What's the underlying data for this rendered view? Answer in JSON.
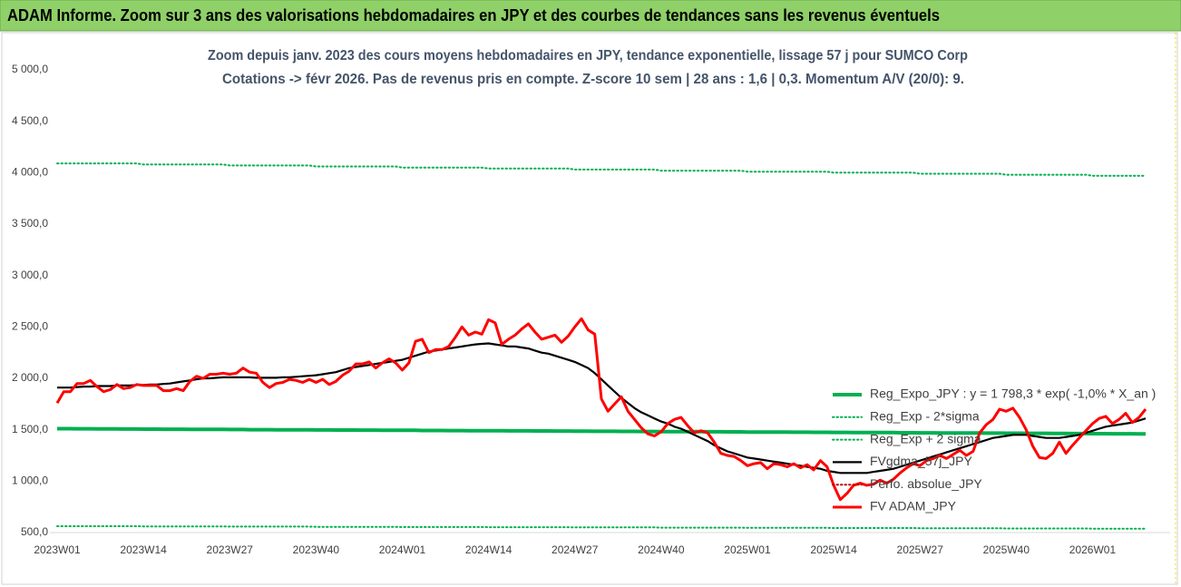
{
  "header": {
    "title": "ADAM Informe. Zoom sur 3 ans des valorisations hebdomadaires en JPY et des courbes de tendances sans les revenus éventuels"
  },
  "chart_data": {
    "type": "line",
    "title": "Zoom depuis janv. 2023 des cours moyens hebdomadaires en JPY, tendance exponentielle, lissage 57 j pour SUMCO Corp",
    "subtitle": "Cotations -> févr 2026.  Pas de revenus pris en compte. Z-score 10 sem | 28 ans : 1,6 | 0,3. Momentum A/V (20/0): 9.",
    "categories": [
      "2023W01",
      null,
      null,
      null,
      null,
      null,
      null,
      null,
      null,
      null,
      null,
      null,
      null,
      "2023W14",
      null,
      null,
      null,
      null,
      null,
      null,
      null,
      null,
      null,
      null,
      null,
      null,
      "2023W27",
      null,
      null,
      null,
      null,
      null,
      null,
      null,
      null,
      null,
      null,
      null,
      null,
      "2023W40",
      null,
      null,
      null,
      null,
      null,
      null,
      null,
      null,
      null,
      null,
      null,
      null,
      "2024W01",
      null,
      null,
      null,
      null,
      null,
      null,
      null,
      null,
      null,
      null,
      null,
      null,
      "2024W14",
      null,
      null,
      null,
      null,
      null,
      null,
      null,
      null,
      null,
      null,
      null,
      null,
      "2024W27",
      null,
      null,
      null,
      null,
      null,
      null,
      null,
      null,
      null,
      null,
      null,
      null,
      "2024W40",
      null,
      null,
      null,
      null,
      null,
      null,
      null,
      null,
      null,
      null,
      null,
      null,
      "2025W01",
      null,
      null,
      null,
      null,
      null,
      null,
      null,
      null,
      null,
      null,
      null,
      null,
      "2025W14",
      null,
      null,
      null,
      null,
      null,
      null,
      null,
      null,
      null,
      null,
      null,
      null,
      "2025W27",
      null,
      null,
      null,
      null,
      null,
      null,
      null,
      null,
      null,
      null,
      null,
      null,
      "2025W40",
      null,
      null,
      null,
      null,
      null,
      null,
      null,
      null,
      null,
      null,
      null,
      null,
      "2026W01",
      null,
      null,
      null,
      null,
      null,
      null,
      null,
      null
    ],
    "ylim": [
      500,
      5000
    ],
    "yticks": [
      {
        "value": 500,
        "label": "500,0"
      },
      {
        "value": 1000,
        "label": "1 000,0"
      },
      {
        "value": 1500,
        "label": "1 500,0"
      },
      {
        "value": 2000,
        "label": "2 000,0"
      },
      {
        "value": 2500,
        "label": "2 500,0"
      },
      {
        "value": 3000,
        "label": "3 000,0"
      },
      {
        "value": 3500,
        "label": "3 500,0"
      },
      {
        "value": 4000,
        "label": "4 000,0"
      },
      {
        "value": 4500,
        "label": "4 500,0"
      },
      {
        "value": 5000,
        "label": "5 000,0"
      }
    ],
    "grid": false,
    "legend": "lower right",
    "series": [
      {
        "name": "Reg_Expo_JPY : y = 1 798,3 * exp( -1,0% *  X_an )",
        "color": "#00b050",
        "style": "solid",
        "values": [
          1510,
          1510,
          1510,
          1509,
          1509,
          1509,
          1508,
          1508,
          1508,
          1508,
          1507,
          1507,
          1507,
          1506,
          1506,
          1506,
          1505,
          1505,
          1505,
          1505,
          1504,
          1504,
          1504,
          1503,
          1503,
          1503,
          1502,
          1502,
          1502,
          1501,
          1501,
          1501,
          1501,
          1500,
          1500,
          1500,
          1499,
          1499,
          1499,
          1498,
          1498,
          1498,
          1497,
          1497,
          1497,
          1497,
          1496,
          1496,
          1496,
          1495,
          1495,
          1495,
          1494,
          1494,
          1494,
          1493,
          1493,
          1493,
          1493,
          1492,
          1492,
          1492,
          1491,
          1491,
          1491,
          1490,
          1490,
          1490,
          1489,
          1489,
          1489,
          1489,
          1488,
          1488,
          1488,
          1487,
          1487,
          1487,
          1486,
          1486,
          1486,
          1485,
          1485,
          1485,
          1485,
          1484,
          1484,
          1484,
          1483,
          1483,
          1483,
          1482,
          1482,
          1482,
          1481,
          1481,
          1481,
          1481,
          1480,
          1480,
          1480,
          1479,
          1479,
          1479,
          1478,
          1478,
          1478,
          1477,
          1477,
          1477,
          1477,
          1476,
          1476,
          1476,
          1475,
          1475,
          1475,
          1474,
          1474,
          1474,
          1473,
          1473,
          1473,
          1473,
          1472,
          1472,
          1472,
          1471,
          1471,
          1471,
          1470,
          1470,
          1470,
          1469,
          1469,
          1469,
          1469,
          1468,
          1468,
          1468,
          1467,
          1467,
          1467,
          1466,
          1466,
          1466,
          1465,
          1465,
          1465,
          1465,
          1464,
          1464,
          1464,
          1463,
          1463,
          1463,
          1462,
          1462,
          1462,
          1461,
          1461,
          1461,
          1461,
          1460,
          1460
        ]
      },
      {
        "name": "Reg_Exp - 2*sigma",
        "color": "#00b050",
        "style": "dotted",
        "values": [
          562,
          562,
          562,
          562,
          562,
          562,
          562,
          562,
          562,
          562,
          562,
          562,
          562,
          560,
          560,
          560,
          560,
          560,
          560,
          560,
          560,
          560,
          560,
          560,
          560,
          560,
          558,
          558,
          558,
          558,
          558,
          558,
          558,
          558,
          558,
          558,
          558,
          558,
          558,
          556,
          556,
          556,
          556,
          556,
          556,
          556,
          556,
          556,
          556,
          556,
          556,
          556,
          554,
          554,
          554,
          554,
          554,
          554,
          554,
          554,
          554,
          554,
          554,
          554,
          554,
          552,
          552,
          552,
          552,
          552,
          552,
          552,
          552,
          552,
          552,
          552,
          552,
          552,
          550,
          550,
          550,
          550,
          550,
          550,
          550,
          550,
          550,
          550,
          550,
          550,
          550,
          548,
          548,
          548,
          548,
          548,
          548,
          548,
          548,
          548,
          548,
          548,
          548,
          548,
          546,
          546,
          546,
          546,
          546,
          546,
          546,
          546,
          546,
          546,
          546,
          546,
          546,
          544,
          544,
          544,
          544,
          544,
          544,
          544,
          544,
          544,
          544,
          544,
          544,
          544,
          542,
          542,
          542,
          542,
          542,
          542,
          542,
          542,
          542,
          542,
          542,
          542,
          542,
          540,
          540,
          540,
          540,
          540,
          540,
          540,
          540,
          540,
          540,
          540,
          540,
          540,
          538,
          538,
          538,
          538,
          538,
          538,
          538,
          538,
          538
        ]
      },
      {
        "name": "Reg_Exp + 2 sigma",
        "color": "#00b050",
        "style": "dotted",
        "values": [
          4090,
          4090,
          4090,
          4090,
          4090,
          4090,
          4090,
          4090,
          4090,
          4090,
          4090,
          4090,
          4090,
          4080,
          4080,
          4080,
          4080,
          4080,
          4080,
          4080,
          4080,
          4080,
          4080,
          4080,
          4080,
          4080,
          4070,
          4070,
          4070,
          4070,
          4070,
          4070,
          4070,
          4070,
          4070,
          4070,
          4070,
          4070,
          4070,
          4060,
          4060,
          4060,
          4060,
          4060,
          4060,
          4060,
          4060,
          4060,
          4060,
          4060,
          4060,
          4060,
          4050,
          4050,
          4050,
          4050,
          4050,
          4050,
          4050,
          4050,
          4050,
          4050,
          4050,
          4050,
          4050,
          4040,
          4040,
          4040,
          4040,
          4040,
          4040,
          4040,
          4040,
          4040,
          4040,
          4040,
          4040,
          4040,
          4030,
          4030,
          4030,
          4030,
          4030,
          4030,
          4030,
          4030,
          4030,
          4030,
          4030,
          4030,
          4030,
          4020,
          4020,
          4020,
          4020,
          4020,
          4020,
          4020,
          4020,
          4020,
          4020,
          4020,
          4020,
          4020,
          4010,
          4010,
          4010,
          4010,
          4010,
          4010,
          4010,
          4010,
          4010,
          4010,
          4010,
          4010,
          4010,
          4000,
          4000,
          4000,
          4000,
          4000,
          4000,
          4000,
          4000,
          4000,
          4000,
          4000,
          4000,
          4000,
          3990,
          3990,
          3990,
          3990,
          3990,
          3990,
          3990,
          3990,
          3990,
          3990,
          3990,
          3990,
          3990,
          3980,
          3980,
          3980,
          3980,
          3980,
          3980,
          3980,
          3980,
          3980,
          3980,
          3980,
          3980,
          3980,
          3970,
          3970,
          3970,
          3970,
          3970,
          3970,
          3970,
          3970,
          3970
        ]
      },
      {
        "name": "FVgdma_57j_JPY",
        "color": "#000000",
        "style": "solid",
        "values": [
          1910,
          1910,
          1910,
          1915,
          1920,
          1920,
          1925,
          1925,
          1925,
          1930,
          1930,
          1930,
          1935,
          1935,
          1940,
          1940,
          1945,
          1950,
          1960,
          1970,
          1980,
          1990,
          2000,
          2000,
          2005,
          2010,
          2010,
          2010,
          2010,
          2010,
          2005,
          2005,
          2005,
          2005,
          2010,
          2010,
          2015,
          2020,
          2025,
          2030,
          2040,
          2050,
          2060,
          2080,
          2100,
          2110,
          2120,
          2130,
          2140,
          2150,
          2160,
          2170,
          2180,
          2200,
          2220,
          2240,
          2260,
          2270,
          2280,
          2290,
          2300,
          2310,
          2320,
          2330,
          2335,
          2340,
          2330,
          2320,
          2310,
          2310,
          2300,
          2290,
          2270,
          2250,
          2240,
          2220,
          2200,
          2180,
          2160,
          2130,
          2100,
          2050,
          1990,
          1930,
          1870,
          1810,
          1760,
          1710,
          1670,
          1640,
          1610,
          1580,
          1560,
          1530,
          1510,
          1480,
          1450,
          1420,
          1390,
          1350,
          1320,
          1290,
          1270,
          1250,
          1230,
          1220,
          1210,
          1200,
          1190,
          1180,
          1170,
          1160,
          1150,
          1140,
          1130,
          1120,
          1100,
          1090,
          1080,
          1080,
          1080,
          1080,
          1080,
          1090,
          1100,
          1110,
          1120,
          1140,
          1160,
          1180,
          1200,
          1220,
          1240,
          1260,
          1280,
          1300,
          1320,
          1340,
          1360,
          1380,
          1400,
          1420,
          1430,
          1440,
          1450,
          1450,
          1450,
          1440,
          1430,
          1420,
          1420,
          1420,
          1430,
          1440,
          1450,
          1470,
          1490,
          1510,
          1530,
          1540,
          1550,
          1560,
          1570,
          1590,
          1610
        ]
      },
      {
        "name": "Perfo. absolue_JPY",
        "color": "#c00000",
        "style": "dotted",
        "values": [
          null,
          null,
          null,
          null,
          null,
          null,
          null,
          null,
          null,
          null,
          null,
          null,
          null,
          null,
          null,
          null,
          null,
          null,
          null,
          null,
          null,
          null,
          null,
          null,
          null,
          null,
          null,
          null,
          null,
          null,
          null,
          null,
          null,
          null,
          null,
          null,
          null,
          null,
          null,
          null,
          null,
          null,
          null,
          null,
          null,
          null,
          null,
          null,
          null,
          null,
          null,
          null,
          null,
          null,
          null,
          null,
          null,
          null,
          null,
          null,
          null,
          null,
          null,
          null,
          null,
          null,
          null,
          null,
          null,
          null,
          null,
          null,
          null,
          null,
          null,
          null,
          null,
          null,
          null,
          null,
          null,
          null,
          null,
          null,
          null,
          null,
          null,
          null,
          null,
          null,
          null,
          null,
          null,
          null,
          null,
          null,
          null,
          null,
          null,
          null,
          null,
          null,
          null,
          null,
          null,
          null,
          null,
          null,
          null,
          null,
          null,
          null,
          null,
          null,
          null,
          null,
          null,
          null,
          null,
          null,
          null,
          null,
          null,
          null,
          null,
          null,
          null,
          null,
          null,
          null,
          null,
          null,
          null,
          null,
          null,
          null,
          null,
          null,
          null,
          null,
          null,
          null,
          null,
          null,
          null,
          null,
          null,
          null,
          null,
          null,
          null,
          null,
          null,
          null,
          null,
          null,
          null,
          null,
          null,
          null,
          null,
          null,
          null,
          null,
          null
        ]
      },
      {
        "name": "FV ADAM_JPY",
        "color": "#ff0000",
        "style": "solid",
        "values": [
          1760,
          1870,
          1870,
          1950,
          1950,
          1980,
          1920,
          1870,
          1890,
          1940,
          1900,
          1910,
          1940,
          1930,
          1930,
          1930,
          1880,
          1880,
          1900,
          1880,
          1970,
          2020,
          2000,
          2040,
          2040,
          2050,
          2040,
          2050,
          2100,
          2060,
          2050,
          1960,
          1910,
          1950,
          1960,
          1990,
          1980,
          1960,
          1990,
          1960,
          1990,
          1940,
          1970,
          2030,
          2070,
          2140,
          2140,
          2160,
          2100,
          2150,
          2190,
          2150,
          2080,
          2150,
          2360,
          2380,
          2250,
          2280,
          2280,
          2310,
          2400,
          2500,
          2420,
          2450,
          2430,
          2570,
          2540,
          2330,
          2380,
          2420,
          2480,
          2530,
          2450,
          2380,
          2400,
          2420,
          2350,
          2410,
          2500,
          2580,
          2470,
          2430,
          1800,
          1680,
          1750,
          1820,
          1680,
          1600,
          1520,
          1460,
          1440,
          1480,
          1560,
          1600,
          1620,
          1540,
          1470,
          1490,
          1470,
          1380,
          1270,
          1250,
          1240,
          1200,
          1150,
          1170,
          1180,
          1120,
          1170,
          1160,
          1140,
          1170,
          1130,
          1160,
          1110,
          1200,
          1140,
          960,
          820,
          880,
          960,
          980,
          960,
          970,
          1010,
          980,
          1020,
          1080,
          1130,
          1170,
          1150,
          1200,
          1220,
          1250,
          1220,
          1260,
          1300,
          1250,
          1290,
          1470,
          1550,
          1600,
          1700,
          1680,
          1710,
          1620,
          1500,
          1340,
          1230,
          1220,
          1270,
          1380,
          1270,
          1350,
          1420,
          1490,
          1560,
          1610,
          1630,
          1560,
          1600,
          1660,
          1570,
          1620,
          1700
        ]
      }
    ]
  }
}
